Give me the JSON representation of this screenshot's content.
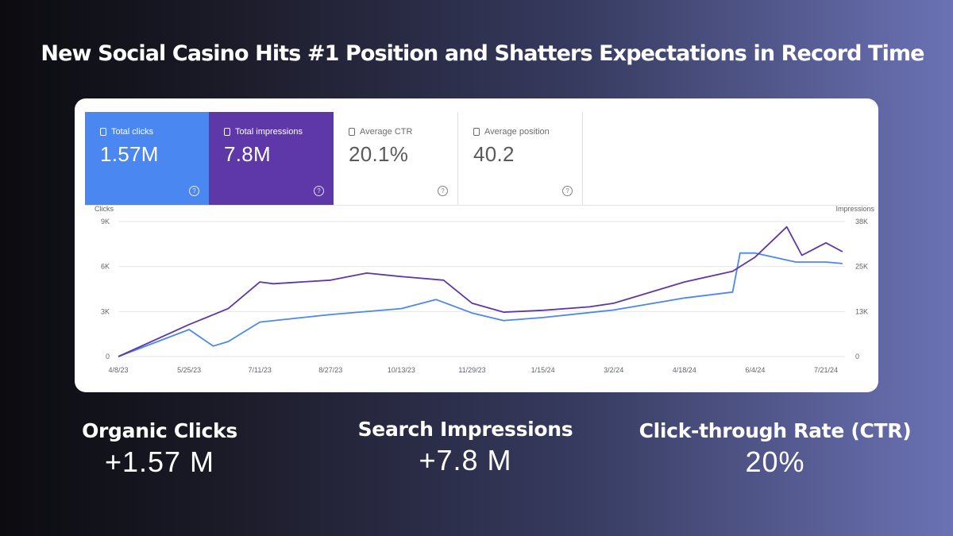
{
  "headline": "New Social Casino Hits #1 Position and Shatters Expectations in Record Time",
  "metrics": [
    {
      "label": "Total clicks",
      "value": "1.57M"
    },
    {
      "label": "Total impressions",
      "value": "7.8M"
    },
    {
      "label": "Average CTR",
      "value": "20.1%"
    },
    {
      "label": "Average position",
      "value": "40.2"
    }
  ],
  "stats": [
    {
      "label": "Organic Clicks",
      "value": "+1.57 M"
    },
    {
      "label": "Search Impressions",
      "value": "+7.8 M"
    },
    {
      "label": "Click-through Rate (CTR)",
      "value": "20%"
    }
  ],
  "colors": {
    "clicks": "#4b87f0",
    "impressions": "#5e37a9"
  },
  "chart_data": {
    "type": "line",
    "xlabel": "",
    "left_axis_title": "Clicks",
    "right_axis_title": "Impressions",
    "left_ylim": [
      0,
      9000
    ],
    "right_ylim": [
      0,
      38000
    ],
    "left_ticks": [
      "0",
      "3K",
      "6K",
      "9K"
    ],
    "right_ticks": [
      "0",
      "13K",
      "25K",
      "38K"
    ],
    "x_tick_labels": [
      "4/8/23",
      "5/25/23",
      "7/11/23",
      "8/27/23",
      "10/13/23",
      "11/29/23",
      "1/15/24",
      "3/2/24",
      "4/18/24",
      "6/4/24",
      "7/21/24"
    ],
    "grid": true,
    "series": [
      {
        "name": "Clicks",
        "axis": "left",
        "color": "#4b87f0",
        "x": [
          "4/8/23",
          "5/25/23",
          "6/10/23",
          "6/20/23",
          "7/11/23",
          "8/27/23",
          "10/13/23",
          "11/5/23",
          "11/29/23",
          "12/20/23",
          "1/15/24",
          "3/2/24",
          "4/18/24",
          "5/20/24",
          "5/25/24",
          "6/4/24",
          "7/1/24",
          "7/21/24",
          "8/1/24"
        ],
        "values": [
          0,
          1800,
          700,
          1000,
          2300,
          2800,
          3200,
          3800,
          2900,
          2400,
          2600,
          3100,
          3900,
          4300,
          6900,
          6900,
          6300,
          6300,
          6200
        ]
      },
      {
        "name": "Impressions",
        "axis": "right",
        "color": "#5e37a9",
        "x": [
          "4/8/23",
          "5/25/23",
          "6/20/23",
          "7/11/23",
          "7/20/23",
          "8/27/23",
          "9/20/23",
          "10/13/23",
          "11/10/23",
          "11/29/23",
          "12/20/23",
          "1/15/24",
          "2/15/24",
          "3/2/24",
          "4/18/24",
          "5/20/24",
          "6/4/24",
          "6/25/24",
          "7/5/24",
          "7/21/24",
          "8/1/24"
        ],
        "values": [
          0,
          9000,
          13500,
          21000,
          20500,
          21500,
          23500,
          22500,
          21500,
          15000,
          12500,
          13000,
          14000,
          15000,
          21000,
          24000,
          28000,
          36500,
          28500,
          32000,
          29500
        ]
      }
    ]
  }
}
